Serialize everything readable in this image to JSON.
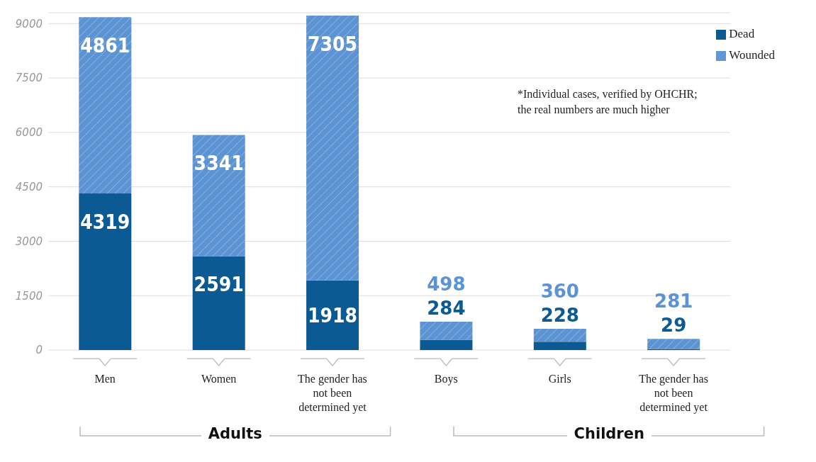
{
  "chart_data": {
    "type": "bar",
    "stacked": true,
    "categories": [
      "Men",
      "Women",
      "The gender has not been determined yet",
      "Boys",
      "Girls",
      "The gender has not been determined yet"
    ],
    "series": [
      {
        "name": "Dead",
        "color": "#0b5a94",
        "values": [
          4319,
          2591,
          1918,
          284,
          228,
          29
        ]
      },
      {
        "name": "Wounded",
        "color": "#5b93d3",
        "values": [
          4861,
          3341,
          7305,
          498,
          360,
          281
        ]
      }
    ],
    "ylim": [
      0,
      9300
    ],
    "yticks": [
      0,
      1500,
      3000,
      4500,
      6000,
      7500,
      9000
    ],
    "grid": "y",
    "legend": "top right",
    "data_labels": true,
    "annotations": [
      "*Individual cases, verified by OHCHR; the real numbers are much higher",
      "Adults",
      "Children"
    ]
  }
}
